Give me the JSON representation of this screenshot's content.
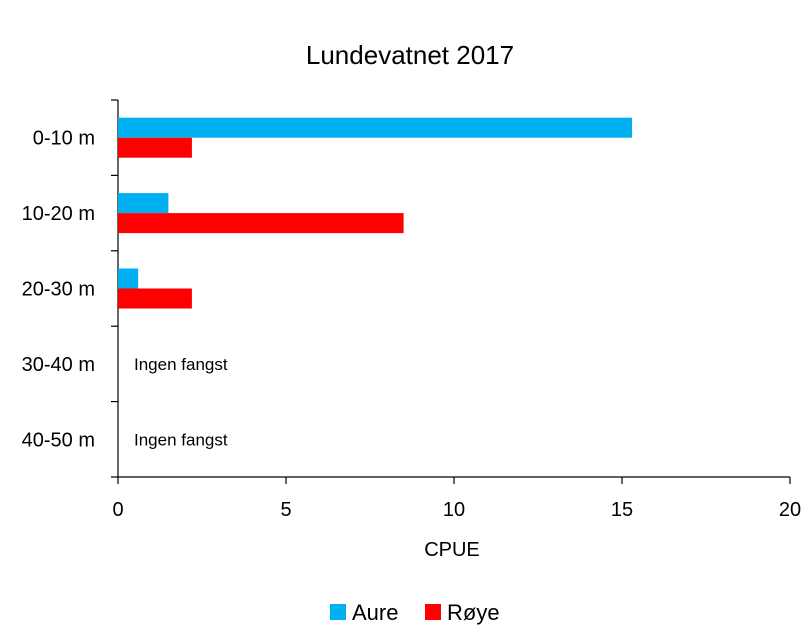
{
  "chart_data": {
    "type": "bar",
    "orientation": "horizontal",
    "title": "Lundevatnet 2017",
    "categories": [
      "0-10 m",
      "10-20 m",
      "20-30 m",
      "30-40 m",
      "40-50 m"
    ],
    "series": [
      {
        "name": "Aure",
        "color": "#00B0F0",
        "values": [
          15.3,
          1.5,
          0.6,
          null,
          null
        ]
      },
      {
        "name": "Røye",
        "color": "#FF0000",
        "values": [
          2.2,
          8.5,
          2.2,
          null,
          null
        ]
      }
    ],
    "annotations": [
      "",
      "",
      "",
      "Ingen fangst",
      "Ingen fangst"
    ],
    "xlabel": "CPUE",
    "ylabel": "",
    "xlim": [
      0,
      20
    ],
    "xticks": [
      "0",
      "5",
      "10",
      "15",
      "20"
    ],
    "grid": false,
    "legend_position": "bottom"
  }
}
